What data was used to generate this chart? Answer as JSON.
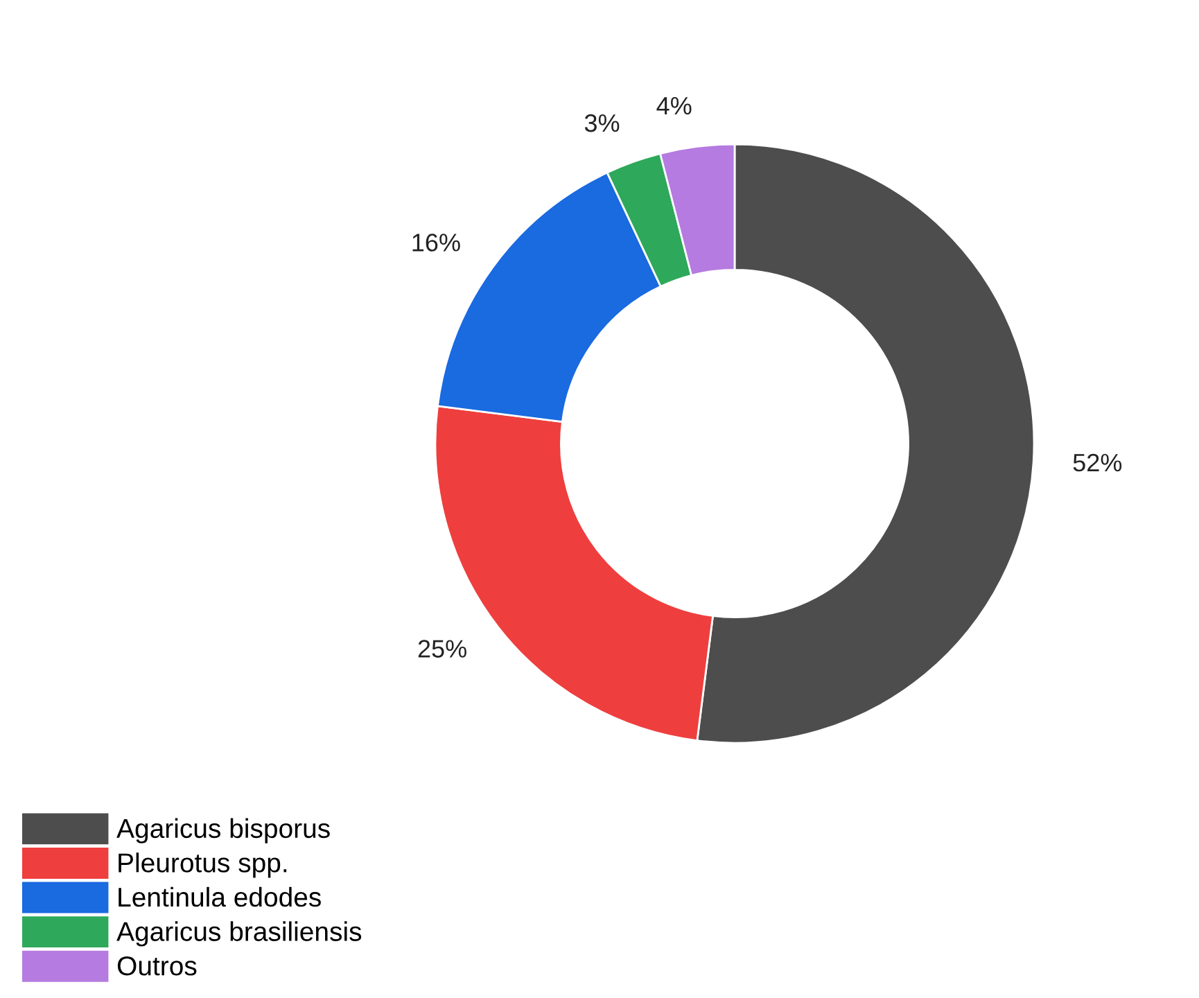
{
  "chart_data": {
    "type": "donut",
    "categories": [
      "Agaricus bisporus",
      "Pleurotus spp.",
      "Lentinula edodes",
      "Agaricus brasiliensis",
      "Outros"
    ],
    "values": [
      52,
      25,
      16,
      3,
      4
    ],
    "colors": [
      "#4d4d4d",
      "#ef3e3e",
      "#1a6ae0",
      "#2ea85a",
      "#b57be0"
    ],
    "value_labels": [
      "52%",
      "25%",
      "16%",
      "3%",
      "4%"
    ],
    "legend": "bottom left"
  }
}
